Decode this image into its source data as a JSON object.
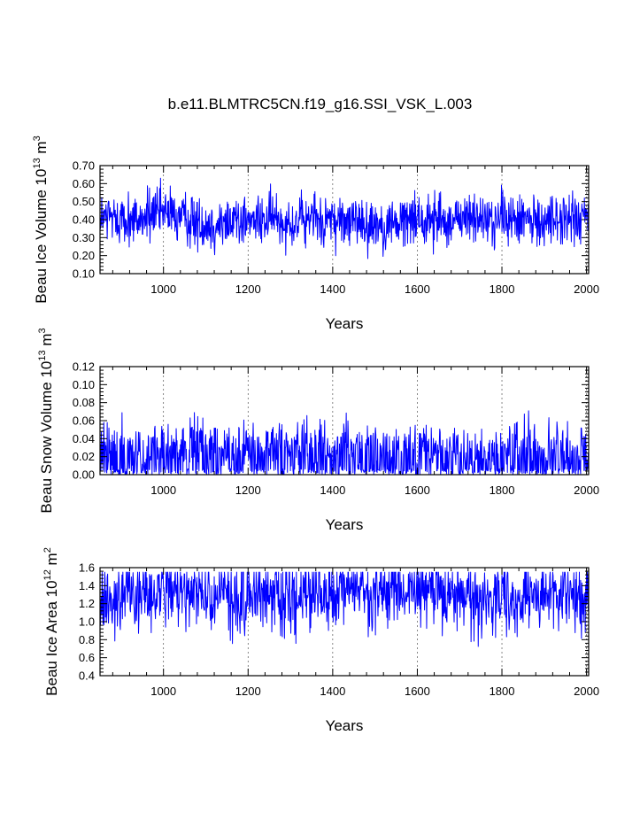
{
  "title": "b.e11.BLMTRC5CN.f19_g16.SSI_VSK_L.003",
  "colors": {
    "series": "#0000ff",
    "axis": "#000000",
    "grid": "#555555"
  },
  "chart_data": [
    {
      "type": "line",
      "name": "ice-volume",
      "ylabel_main": "Beau Ice Volume 10",
      "ylabel_exp": "13",
      "ylabel_unit": " m",
      "ylabel_unit_exp": "3",
      "xlabel": "Years",
      "xlim": [
        850,
        2005
      ],
      "ylim": [
        0.1,
        0.7
      ],
      "xticks": [
        1000,
        1200,
        1400,
        1600,
        1800,
        2000
      ],
      "xtick_labels": [
        "1000",
        "1200",
        "1400",
        "1600",
        "1800",
        "2000"
      ],
      "yticks": [
        0.1,
        0.2,
        0.3,
        0.4,
        0.5,
        0.6,
        0.7
      ],
      "ytick_labels": [
        "0.10",
        "0.20",
        "0.30",
        "0.40",
        "0.50",
        "0.60",
        "0.70"
      ],
      "grid_x": true,
      "signal": {
        "base": 0.4,
        "amp": 0.11,
        "min_clip": 0.11,
        "max_clip": 0.7,
        "floor": null
      }
    },
    {
      "type": "line",
      "name": "snow-volume",
      "ylabel_main": "Beau Snow Volume 10",
      "ylabel_exp": "13",
      "ylabel_unit": " m",
      "ylabel_unit_exp": "3",
      "xlabel": "Years",
      "xlim": [
        850,
        2005
      ],
      "ylim": [
        0.0,
        0.12
      ],
      "xticks": [
        1000,
        1200,
        1400,
        1600,
        1800,
        2000
      ],
      "xtick_labels": [
        "1000",
        "1200",
        "1400",
        "1600",
        "1800",
        "2000"
      ],
      "yticks": [
        0.0,
        0.02,
        0.04,
        0.06,
        0.08,
        0.1,
        0.12
      ],
      "ytick_labels": [
        "0.00",
        "0.02",
        "0.04",
        "0.06",
        "0.08",
        "0.10",
        "0.12"
      ],
      "grid_x": true,
      "signal": {
        "base": 0.03,
        "amp": 0.022,
        "min_clip": 0.0,
        "max_clip": 0.102,
        "floor": 0.0
      }
    },
    {
      "type": "line",
      "name": "ice-area",
      "ylabel_main": "Beau Ice Area 10",
      "ylabel_exp": "12",
      "ylabel_unit": " m",
      "ylabel_unit_exp": "2",
      "xlabel": "Years",
      "xlim": [
        850,
        2005
      ],
      "ylim": [
        0.4,
        1.6
      ],
      "xticks": [
        1000,
        1200,
        1400,
        1600,
        1800,
        2000
      ],
      "xtick_labels": [
        "1000",
        "1200",
        "1400",
        "1600",
        "1800",
        "2000"
      ],
      "yticks": [
        0.4,
        0.6,
        0.8,
        1.0,
        1.2,
        1.4,
        1.6
      ],
      "ytick_labels": [
        "0.4",
        "0.6",
        "0.8",
        "1.0",
        "1.2",
        "1.4",
        "1.6"
      ],
      "grid_x": true,
      "signal": {
        "base": 1.3,
        "amp": 0.3,
        "min_clip": 0.42,
        "max_clip": 1.55,
        "floor": null
      }
    }
  ]
}
